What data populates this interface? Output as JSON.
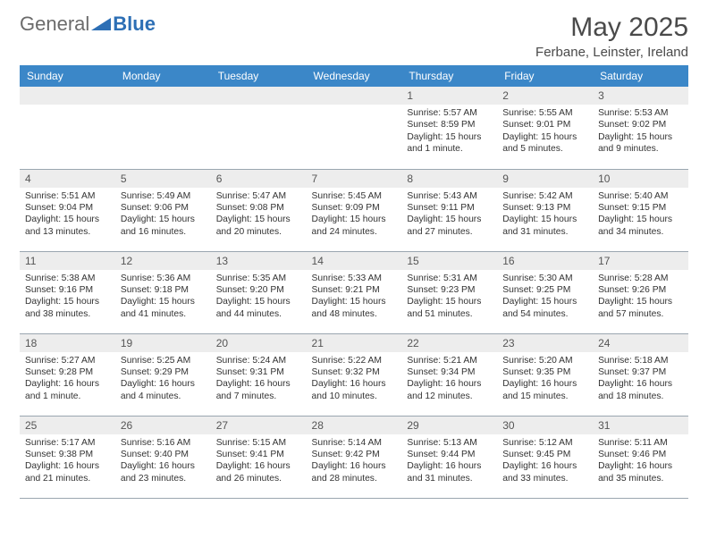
{
  "brand": {
    "part1": "General",
    "part2": "Blue"
  },
  "title": "May 2025",
  "location": "Ferbane, Leinster, Ireland",
  "header_bg": "#3b87c8",
  "daynum_bg": "#ededed",
  "dow": [
    "Sunday",
    "Monday",
    "Tuesday",
    "Wednesday",
    "Thursday",
    "Friday",
    "Saturday"
  ],
  "weeks": [
    [
      null,
      null,
      null,
      null,
      {
        "n": "1",
        "sr": "5:57 AM",
        "ss": "8:59 PM",
        "dl": "15 hours and 1 minute."
      },
      {
        "n": "2",
        "sr": "5:55 AM",
        "ss": "9:01 PM",
        "dl": "15 hours and 5 minutes."
      },
      {
        "n": "3",
        "sr": "5:53 AM",
        "ss": "9:02 PM",
        "dl": "15 hours and 9 minutes."
      }
    ],
    [
      {
        "n": "4",
        "sr": "5:51 AM",
        "ss": "9:04 PM",
        "dl": "15 hours and 13 minutes."
      },
      {
        "n": "5",
        "sr": "5:49 AM",
        "ss": "9:06 PM",
        "dl": "15 hours and 16 minutes."
      },
      {
        "n": "6",
        "sr": "5:47 AM",
        "ss": "9:08 PM",
        "dl": "15 hours and 20 minutes."
      },
      {
        "n": "7",
        "sr": "5:45 AM",
        "ss": "9:09 PM",
        "dl": "15 hours and 24 minutes."
      },
      {
        "n": "8",
        "sr": "5:43 AM",
        "ss": "9:11 PM",
        "dl": "15 hours and 27 minutes."
      },
      {
        "n": "9",
        "sr": "5:42 AM",
        "ss": "9:13 PM",
        "dl": "15 hours and 31 minutes."
      },
      {
        "n": "10",
        "sr": "5:40 AM",
        "ss": "9:15 PM",
        "dl": "15 hours and 34 minutes."
      }
    ],
    [
      {
        "n": "11",
        "sr": "5:38 AM",
        "ss": "9:16 PM",
        "dl": "15 hours and 38 minutes."
      },
      {
        "n": "12",
        "sr": "5:36 AM",
        "ss": "9:18 PM",
        "dl": "15 hours and 41 minutes."
      },
      {
        "n": "13",
        "sr": "5:35 AM",
        "ss": "9:20 PM",
        "dl": "15 hours and 44 minutes."
      },
      {
        "n": "14",
        "sr": "5:33 AM",
        "ss": "9:21 PM",
        "dl": "15 hours and 48 minutes."
      },
      {
        "n": "15",
        "sr": "5:31 AM",
        "ss": "9:23 PM",
        "dl": "15 hours and 51 minutes."
      },
      {
        "n": "16",
        "sr": "5:30 AM",
        "ss": "9:25 PM",
        "dl": "15 hours and 54 minutes."
      },
      {
        "n": "17",
        "sr": "5:28 AM",
        "ss": "9:26 PM",
        "dl": "15 hours and 57 minutes."
      }
    ],
    [
      {
        "n": "18",
        "sr": "5:27 AM",
        "ss": "9:28 PM",
        "dl": "16 hours and 1 minute."
      },
      {
        "n": "19",
        "sr": "5:25 AM",
        "ss": "9:29 PM",
        "dl": "16 hours and 4 minutes."
      },
      {
        "n": "20",
        "sr": "5:24 AM",
        "ss": "9:31 PM",
        "dl": "16 hours and 7 minutes."
      },
      {
        "n": "21",
        "sr": "5:22 AM",
        "ss": "9:32 PM",
        "dl": "16 hours and 10 minutes."
      },
      {
        "n": "22",
        "sr": "5:21 AM",
        "ss": "9:34 PM",
        "dl": "16 hours and 12 minutes."
      },
      {
        "n": "23",
        "sr": "5:20 AM",
        "ss": "9:35 PM",
        "dl": "16 hours and 15 minutes."
      },
      {
        "n": "24",
        "sr": "5:18 AM",
        "ss": "9:37 PM",
        "dl": "16 hours and 18 minutes."
      }
    ],
    [
      {
        "n": "25",
        "sr": "5:17 AM",
        "ss": "9:38 PM",
        "dl": "16 hours and 21 minutes."
      },
      {
        "n": "26",
        "sr": "5:16 AM",
        "ss": "9:40 PM",
        "dl": "16 hours and 23 minutes."
      },
      {
        "n": "27",
        "sr": "5:15 AM",
        "ss": "9:41 PM",
        "dl": "16 hours and 26 minutes."
      },
      {
        "n": "28",
        "sr": "5:14 AM",
        "ss": "9:42 PM",
        "dl": "16 hours and 28 minutes."
      },
      {
        "n": "29",
        "sr": "5:13 AM",
        "ss": "9:44 PM",
        "dl": "16 hours and 31 minutes."
      },
      {
        "n": "30",
        "sr": "5:12 AM",
        "ss": "9:45 PM",
        "dl": "16 hours and 33 minutes."
      },
      {
        "n": "31",
        "sr": "5:11 AM",
        "ss": "9:46 PM",
        "dl": "16 hours and 35 minutes."
      }
    ]
  ],
  "labels": {
    "sunrise": "Sunrise:",
    "sunset": "Sunset:",
    "daylight": "Daylight:"
  }
}
